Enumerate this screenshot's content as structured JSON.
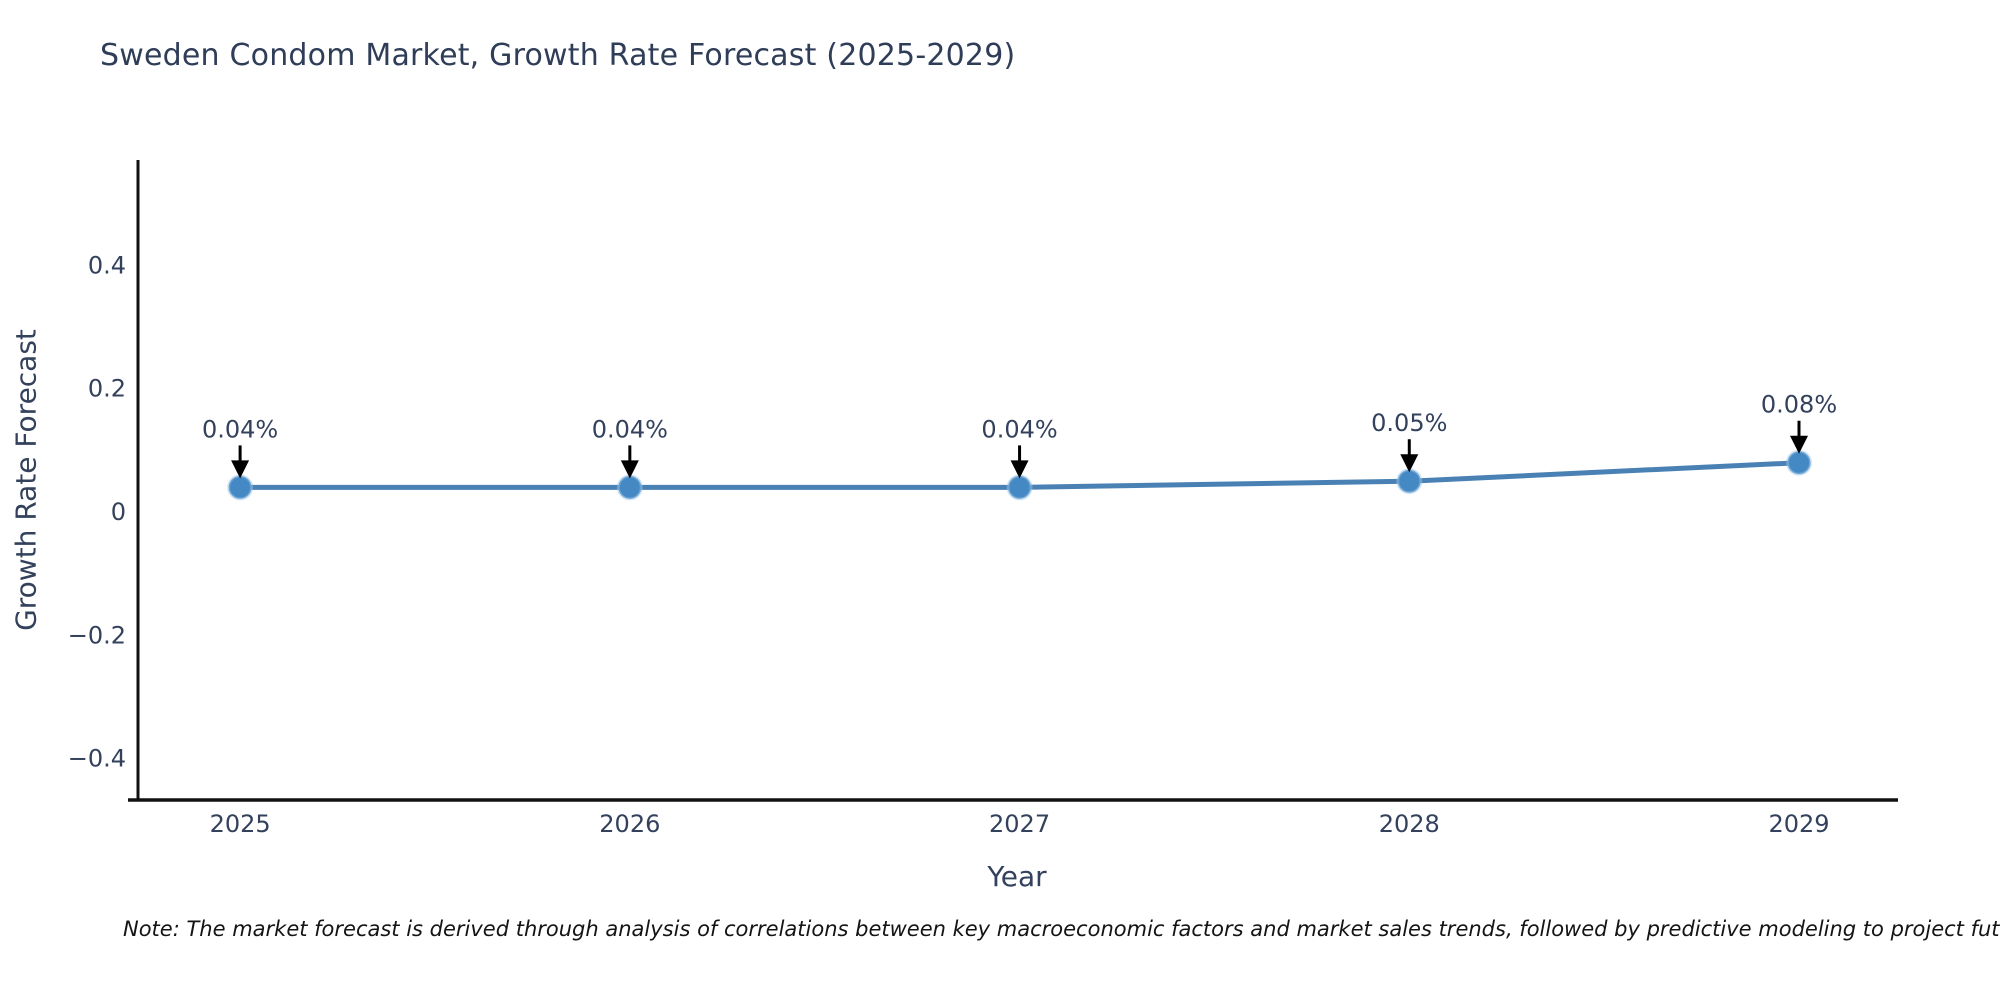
{
  "title": "Sweden Condom Market, Growth Rate Forecast (2025-2029)",
  "note": "Note: The market forecast is derived through analysis of correlations between key macroeconomic factors and market sales trends, followed by predictive modeling to project future sa",
  "colors": {
    "line": "#4a81b4",
    "marker": "#4489c4",
    "marker_halo": "#9ec6e6",
    "axis": "#111111",
    "text": "#33415c",
    "annotation_arrow": "#000000",
    "background": "#ffffff"
  },
  "chart_data": {
    "type": "line",
    "title": "Sweden Condom Market, Growth Rate Forecast (2025-2029)",
    "xlabel": "Year",
    "ylabel": "Growth Rate Forecast",
    "x": [
      2025,
      2026,
      2027,
      2028,
      2029
    ],
    "series": [
      {
        "name": "Growth Rate Forecast",
        "values": [
          0.04,
          0.04,
          0.04,
          0.05,
          0.08
        ],
        "point_labels": [
          "0.04%",
          "0.04%",
          "0.04%",
          "0.05%",
          "0.08%"
        ]
      }
    ],
    "xtick_labels": [
      "2025",
      "2026",
      "2027",
      "2028",
      "2029"
    ],
    "ytick_values": [
      0.4,
      0.2,
      0,
      -0.2,
      -0.4
    ],
    "ytick_labels": [
      "0.4",
      "0.2",
      "0",
      "−0.2",
      "−0.4"
    ],
    "xlim": [
      2024.738,
      2029.254
    ],
    "ylim": [
      -0.467,
      0.571
    ],
    "grid": false,
    "legend": "none",
    "annotations": "value labels with downward arrows above each data point"
  }
}
